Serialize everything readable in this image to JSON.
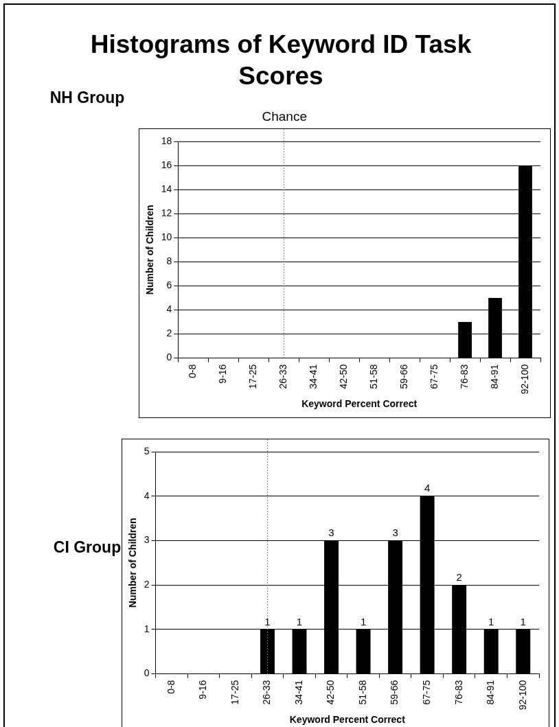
{
  "chart_data": [
    {
      "type": "bar",
      "title": "Histograms of Keyword ID Task Scores",
      "annotations": [
        "NH Group"
      ],
      "xlabel": "Keyword Percent Correct",
      "ylabel": "Number of Children",
      "categories": [
        "0-8",
        "9-16",
        "17-25",
        "26-33",
        "34-41",
        "42-50",
        "51-58",
        "59-66",
        "67-75",
        "76-83",
        "84-91",
        "92-100"
      ],
      "values": [
        0,
        0,
        0,
        0,
        0,
        0,
        0,
        0,
        0,
        3,
        5,
        16
      ],
      "color": "#000000",
      "ylim": [
        0,
        18
      ],
      "yticks": [
        0,
        2,
        4,
        6,
        8,
        10,
        12,
        14,
        16,
        18
      ],
      "grid": "y",
      "ref_lines": [
        {
          "axis": "x",
          "value": "26-33",
          "label": "Chance",
          "color": "#808080",
          "line_style": "dotted"
        }
      ]
    },
    {
      "type": "bar",
      "annotations": [
        "CI Group"
      ],
      "xlabel": "Keyword Percent Correct",
      "ylabel": "Number of Children",
      "categories": [
        "0-8",
        "9-16",
        "17-25",
        "26-33",
        "34-41",
        "42-50",
        "51-58",
        "59-66",
        "67-75",
        "76-83",
        "84-91",
        "92-100"
      ],
      "values": [
        0,
        0,
        0,
        1,
        1,
        3,
        1,
        3,
        4,
        2,
        1,
        1
      ],
      "color": "#000000",
      "value_labels": [
        null,
        null,
        null,
        "1",
        "1",
        "3",
        "1",
        "3",
        "4",
        "2",
        "1",
        "1"
      ],
      "ylim": [
        0,
        5
      ],
      "yticks": [
        0,
        1,
        2,
        3,
        4,
        5
      ],
      "grid": "y",
      "ref_lines": [
        {
          "axis": "x",
          "value": "26-33",
          "color": "#808080",
          "line_style": "dotted"
        }
      ]
    }
  ]
}
